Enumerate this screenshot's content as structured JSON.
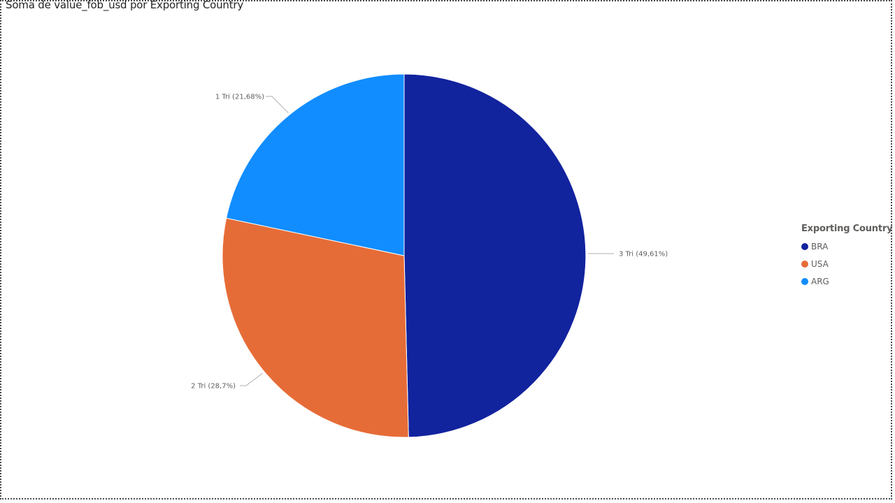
{
  "chart_data": {
    "type": "pie",
    "title": "Soma de value_fob_usd por Exporting Country",
    "legend": {
      "title": "Exporting Country",
      "placement": "right",
      "items": [
        {
          "label": "BRA",
          "color": "#12239e"
        },
        {
          "label": "USA",
          "color": "#e66c37"
        },
        {
          "label": "ARG",
          "color": "#118dff"
        }
      ]
    },
    "slices": [
      {
        "series": "BRA",
        "label": "3 Tri (49,61%)",
        "percent": 49.61,
        "color": "#12239e"
      },
      {
        "series": "USA",
        "label": "2 Tri (28,7%)",
        "percent": 28.7,
        "color": "#e66c37"
      },
      {
        "series": "ARG",
        "label": "1 Tri (21,68%)",
        "percent": 21.68,
        "color": "#118dff"
      }
    ]
  }
}
